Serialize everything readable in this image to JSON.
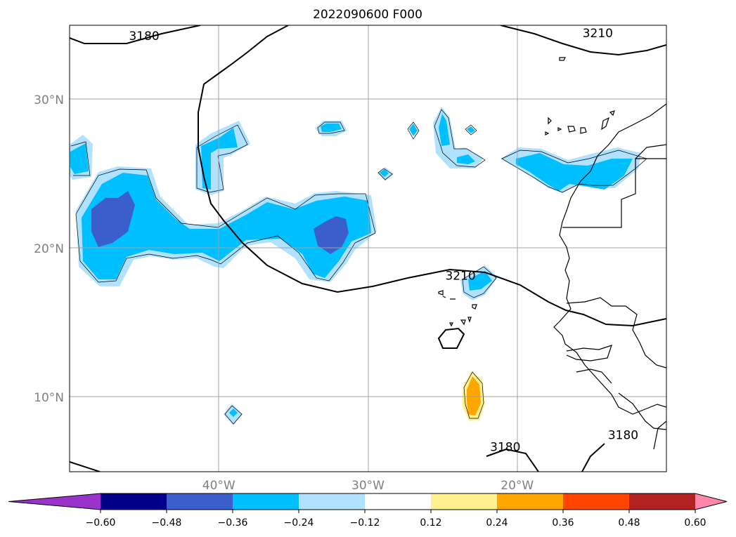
{
  "title": "2022090600 F000",
  "chart_data": {
    "type": "heatmap",
    "title": "2022090600 F000",
    "map": {
      "lon_range": [
        -50,
        -10
      ],
      "lat_range": [
        5,
        35
      ],
      "lat_ticks": [
        {
          "value": 10,
          "label": "10°N"
        },
        {
          "value": 20,
          "label": "20°N"
        },
        {
          "value": 30,
          "label": "30°N"
        }
      ],
      "lon_ticks": [
        {
          "value": -40,
          "label": "40°W"
        },
        {
          "value": -30,
          "label": "30°W"
        },
        {
          "value": -20,
          "label": "20°W"
        }
      ],
      "grid": true
    },
    "contour_labels": [
      {
        "text": "3180",
        "lon": -45,
        "lat": 34
      },
      {
        "text": "3210",
        "lon": -14.6,
        "lat": 34.2
      },
      {
        "text": "3210",
        "lon": -23.8,
        "lat": 17.9
      },
      {
        "text": "3180",
        "lon": -20.8,
        "lat": 6.4
      },
      {
        "text": "3180",
        "lon": -12.9,
        "lat": 7.2
      }
    ],
    "colorbar": {
      "colors": [
        "#9933cc",
        "#00008b",
        "#3a5fcd",
        "#00bfff",
        "#b0e2ff",
        "#ffffff",
        "#fff08f",
        "#ffa500",
        "#ff4500",
        "#b22222",
        "#ff88aa"
      ],
      "boundaries": [
        -0.6,
        -0.48,
        -0.36,
        -0.24,
        -0.12,
        0.12,
        0.24,
        0.36,
        0.48,
        0.6
      ],
      "tick_labels": [
        "−0.60",
        "−0.48",
        "−0.36",
        "−0.24",
        "−0.12",
        "0.12",
        "0.24",
        "0.36",
        "0.48",
        "0.60"
      ],
      "extend": "both"
    }
  }
}
